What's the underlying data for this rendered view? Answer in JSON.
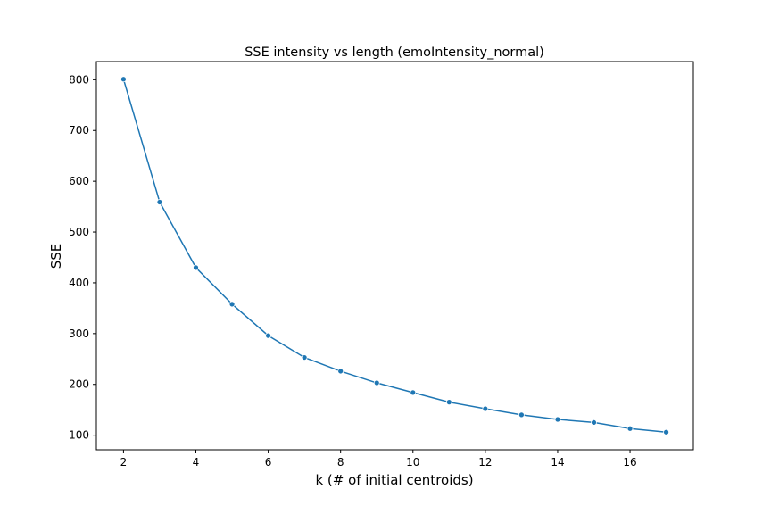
{
  "chart_data": {
    "type": "line",
    "title": "SSE intensity vs length (emoIntensity_normal)",
    "xlabel": "k (# of initial centroids)",
    "ylabel": "SSE",
    "x": [
      2,
      3,
      4,
      5,
      6,
      7,
      8,
      9,
      10,
      11,
      12,
      13,
      14,
      15,
      16,
      17
    ],
    "series": [
      {
        "values": [
          801,
          559,
          430,
          358,
          296,
          253,
          226,
          203,
          184,
          165,
          152,
          140,
          131,
          125,
          113,
          106
        ],
        "color": "#1f77b4",
        "marker": "circle"
      }
    ],
    "xticks": [
      2,
      4,
      6,
      8,
      10,
      12,
      14,
      16
    ],
    "yticks": [
      100,
      200,
      300,
      400,
      500,
      600,
      700,
      800
    ],
    "xlim": [
      1.25,
      17.75
    ],
    "ylim": [
      71.25,
      835.75
    ],
    "grid": false,
    "legend": "none"
  }
}
